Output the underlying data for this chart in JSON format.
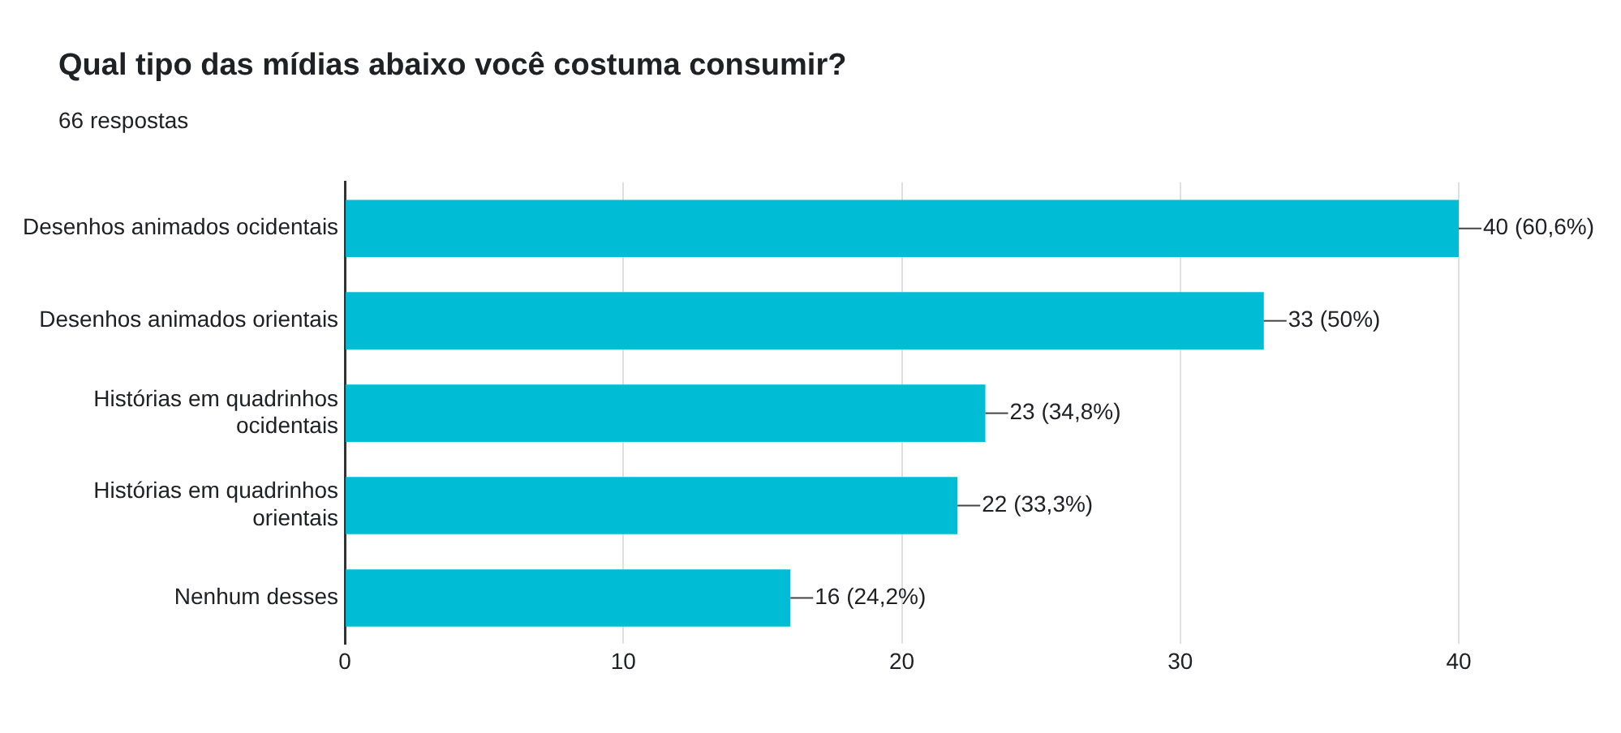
{
  "chart_data": {
    "type": "bar",
    "orientation": "horizontal",
    "title": "Qual tipo das mídias abaixo você costuma consumir?",
    "subtitle": "66 respostas",
    "categories": [
      "Desenhos animados ocidentais",
      "Desenhos animados orientais",
      "Histórias em quadrinhos ocidentais",
      "Histórias em quadrinhos orientais",
      "Nenhum desses"
    ],
    "values": [
      40,
      33,
      23,
      22,
      16
    ],
    "color": "#00bcd4",
    "value_labels": [
      "40 (60,6%)",
      "33 (50%)",
      "23 (34,8%)",
      "22 (33,3%)",
      "16 (24,2%)"
    ],
    "xlim": [
      0,
      40
    ],
    "xticks": [
      0,
      10,
      20,
      30,
      40
    ],
    "grid": "x",
    "legend": false
  }
}
